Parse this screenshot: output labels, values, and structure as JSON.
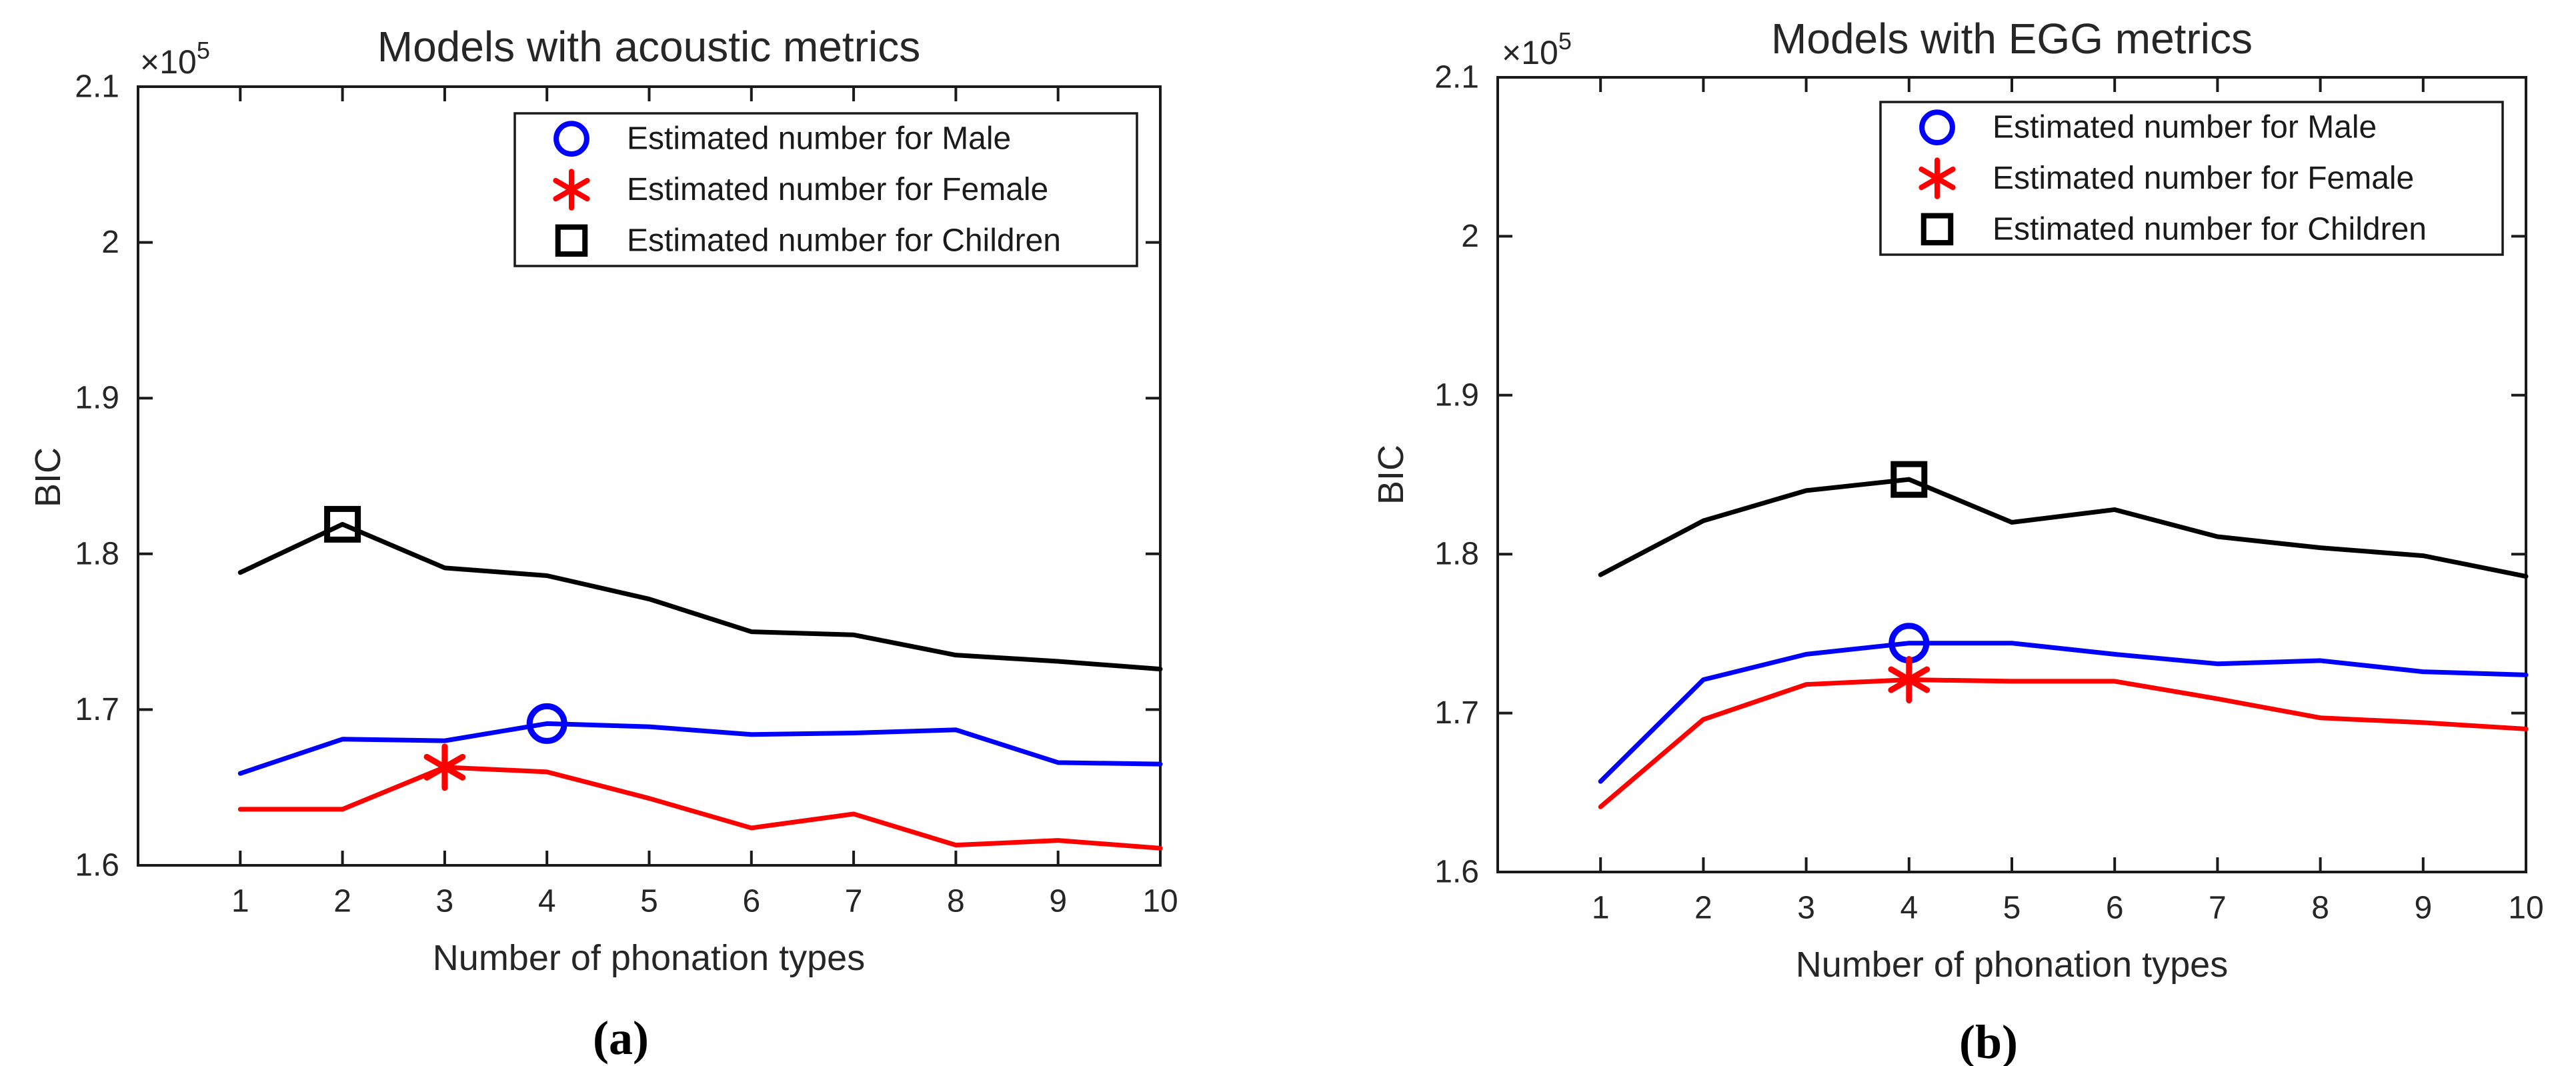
{
  "figure": {
    "background": "#ffffff",
    "axis_color": "#1a1a1a",
    "tick_text_color": "#262626"
  },
  "chart_data": [
    {
      "panel": "a",
      "caption": "(a)",
      "type": "line",
      "title": "Models with acoustic metrics",
      "xlabel": "Number of phonation types",
      "ylabel": "BIC",
      "y_exponent_label": {
        "base": "×10",
        "exponent": "5"
      },
      "xlim": [
        0,
        10
      ],
      "ylim": [
        160000,
        210000
      ],
      "grid": false,
      "legend_position": "top-right",
      "x_ticks": {
        "values": [
          1,
          2,
          3,
          4,
          5,
          6,
          7,
          8,
          9,
          10
        ],
        "labels": [
          "1",
          "2",
          "3",
          "4",
          "5",
          "6",
          "7",
          "8",
          "9",
          "10"
        ]
      },
      "y_ticks": {
        "values": [
          160000,
          170000,
          180000,
          190000,
          200000,
          210000
        ],
        "labels": [
          "1.6",
          "1.7",
          "1.8",
          "1.9",
          "2",
          "2.1"
        ]
      },
      "x": [
        1,
        2,
        3,
        4,
        5,
        6,
        7,
        8,
        9,
        10
      ],
      "series": [
        {
          "name": "Male",
          "color": "#0000ff",
          "values": [
            165900,
            168100,
            168000,
            169100,
            168900,
            168400,
            168500,
            168700,
            166600,
            166500
          ],
          "marker": {
            "symbol": "circle",
            "at_x": 4
          }
        },
        {
          "name": "Female",
          "color": "#ff0000",
          "values": [
            163600,
            163600,
            166300,
            166000,
            164300,
            162400,
            163300,
            161300,
            161600,
            161100
          ],
          "marker": {
            "symbol": "asterisk",
            "at_x": 3
          }
        },
        {
          "name": "Children",
          "color": "#000000",
          "values": [
            178800,
            181900,
            179100,
            178600,
            177100,
            175000,
            174800,
            173500,
            173100,
            172600
          ],
          "marker": {
            "symbol": "square",
            "at_x": 2
          }
        }
      ],
      "legend": {
        "entries": [
          {
            "marker": "circle",
            "color": "#0000ff",
            "label": "Estimated number for Male"
          },
          {
            "marker": "asterisk",
            "color": "#ff0000",
            "label": "Estimated number for Female"
          },
          {
            "marker": "square",
            "color": "#000000",
            "label": "Estimated number for Children"
          }
        ]
      }
    },
    {
      "panel": "b",
      "caption": "(b)",
      "type": "line",
      "title": "Models with EGG metrics",
      "xlabel": "Number of phonation types",
      "ylabel": "BIC",
      "y_exponent_label": {
        "base": "×10",
        "exponent": "5"
      },
      "xlim": [
        0,
        10
      ],
      "ylim": [
        160000,
        210000
      ],
      "grid": false,
      "legend_position": "top-right",
      "x_ticks": {
        "values": [
          1,
          2,
          3,
          4,
          5,
          6,
          7,
          8,
          9,
          10
        ],
        "labels": [
          "1",
          "2",
          "3",
          "4",
          "5",
          "6",
          "7",
          "8",
          "9",
          "10"
        ]
      },
      "y_ticks": {
        "values": [
          160000,
          170000,
          180000,
          190000,
          200000,
          210000
        ],
        "labels": [
          "1.6",
          "1.7",
          "1.8",
          "1.9",
          "2",
          "2.1"
        ]
      },
      "x": [
        1,
        2,
        3,
        4,
        5,
        6,
        7,
        8,
        9,
        10
      ],
      "series": [
        {
          "name": "Male",
          "color": "#0000ff",
          "values": [
            165700,
            172100,
            173700,
            174400,
            174400,
            173700,
            173100,
            173300,
            172600,
            172400
          ],
          "marker": {
            "symbol": "circle",
            "at_x": 4
          }
        },
        {
          "name": "Female",
          "color": "#ff0000",
          "values": [
            164100,
            169600,
            171800,
            172100,
            172000,
            172000,
            170900,
            169700,
            169400,
            169000
          ],
          "marker": {
            "symbol": "asterisk",
            "at_x": 4
          }
        },
        {
          "name": "Children",
          "color": "#000000",
          "values": [
            178700,
            182100,
            184000,
            184700,
            182000,
            182800,
            181100,
            180400,
            179900,
            178600
          ],
          "marker": {
            "symbol": "square",
            "at_x": 4
          }
        }
      ],
      "legend": {
        "entries": [
          {
            "marker": "circle",
            "color": "#0000ff",
            "label": "Estimated number for Male"
          },
          {
            "marker": "asterisk",
            "color": "#ff0000",
            "label": "Estimated number for Female"
          },
          {
            "marker": "square",
            "color": "#000000",
            "label": "Estimated number for Children"
          }
        ]
      }
    }
  ]
}
